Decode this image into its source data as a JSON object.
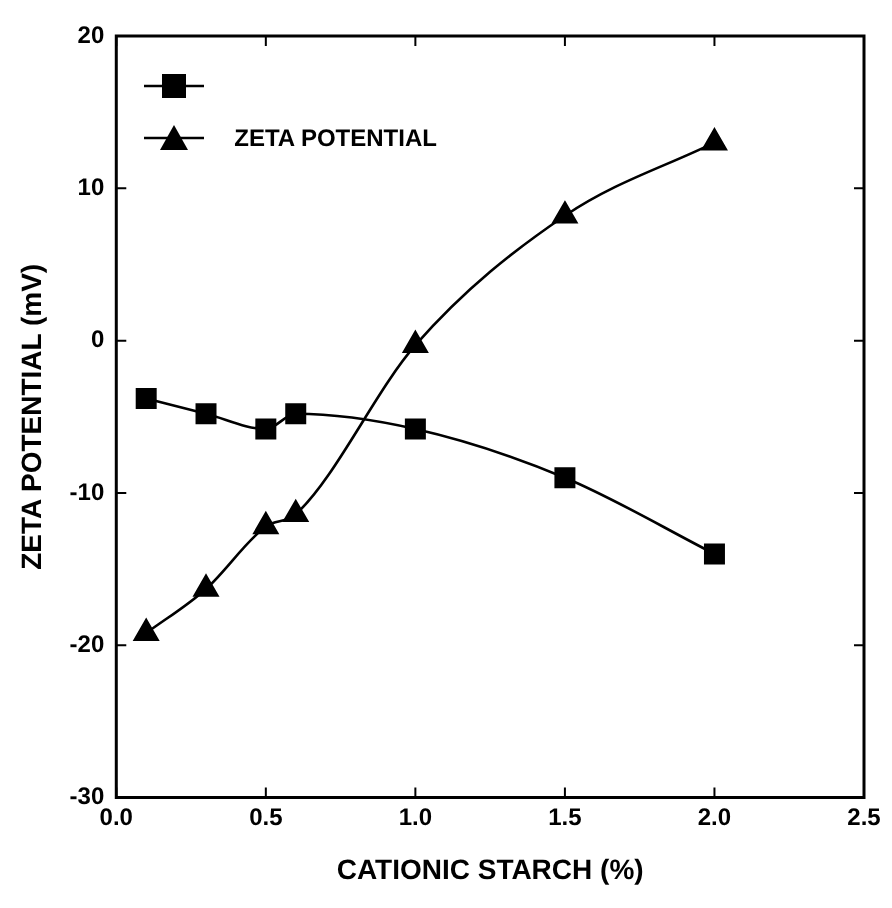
{
  "chart_data": {
    "type": "line",
    "xlabel": "CATIONIC STARCH (%)",
    "ylabel": "ZETA POTENTIAL (mV)",
    "x": [
      0.1,
      0.3,
      0.5,
      0.6,
      1.0,
      1.5,
      2.0
    ],
    "series": [
      {
        "color": "#000000",
        "marker": "square",
        "values": [
          -3.8,
          -4.8,
          -5.8,
          -4.8,
          -5.8,
          -9.0,
          -14.0
        ]
      },
      {
        "name": "ZETA POTENTIAL",
        "color": "#000000",
        "marker": "triangle",
        "values": [
          -19.2,
          -16.3,
          -12.2,
          -11.4,
          -0.3,
          8.2,
          13.0
        ]
      }
    ],
    "xlim": [
      0,
      2.5
    ],
    "xticks": [
      {
        "value": 0,
        "label": "0.0"
      },
      {
        "value": 0.5,
        "label": "0.5"
      },
      {
        "value": 1,
        "label": "1.0"
      },
      {
        "value": 1.5,
        "label": "1.5"
      },
      {
        "value": 2,
        "label": "2.0"
      },
      {
        "value": 2.5,
        "label": "2.5"
      }
    ],
    "ylim": [
      -30,
      20
    ],
    "yticks": [
      -30,
      -20,
      -10,
      0,
      10,
      20
    ],
    "grid": false,
    "legend": "top left",
    "line_style": "solid"
  }
}
